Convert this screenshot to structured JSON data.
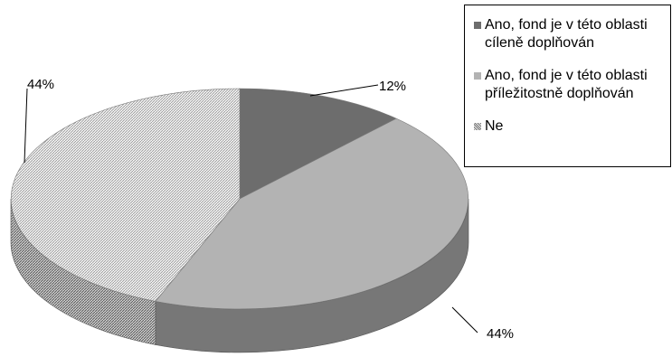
{
  "chart_data": {
    "type": "pie",
    "three_d": true,
    "slices": [
      {
        "label": "Ano, fond je v této oblasti cíleně doplňován",
        "value": 12,
        "data_label": "12%",
        "color": "#6d6d6d",
        "side_color": "#4a4a4a",
        "pattern": "solid"
      },
      {
        "label": "Ano, fond je v této oblasti příležitostně doplňován",
        "value": 44,
        "data_label": "44%",
        "color": "#b3b3b3",
        "side_color": "#777777",
        "pattern": "solid"
      },
      {
        "label": "Ne",
        "value": 44,
        "data_label": "44%",
        "color": "#d6d6d6",
        "side_color": "#8a8a8a",
        "pattern": "hatched"
      }
    ],
    "legend_position": "top-right"
  }
}
